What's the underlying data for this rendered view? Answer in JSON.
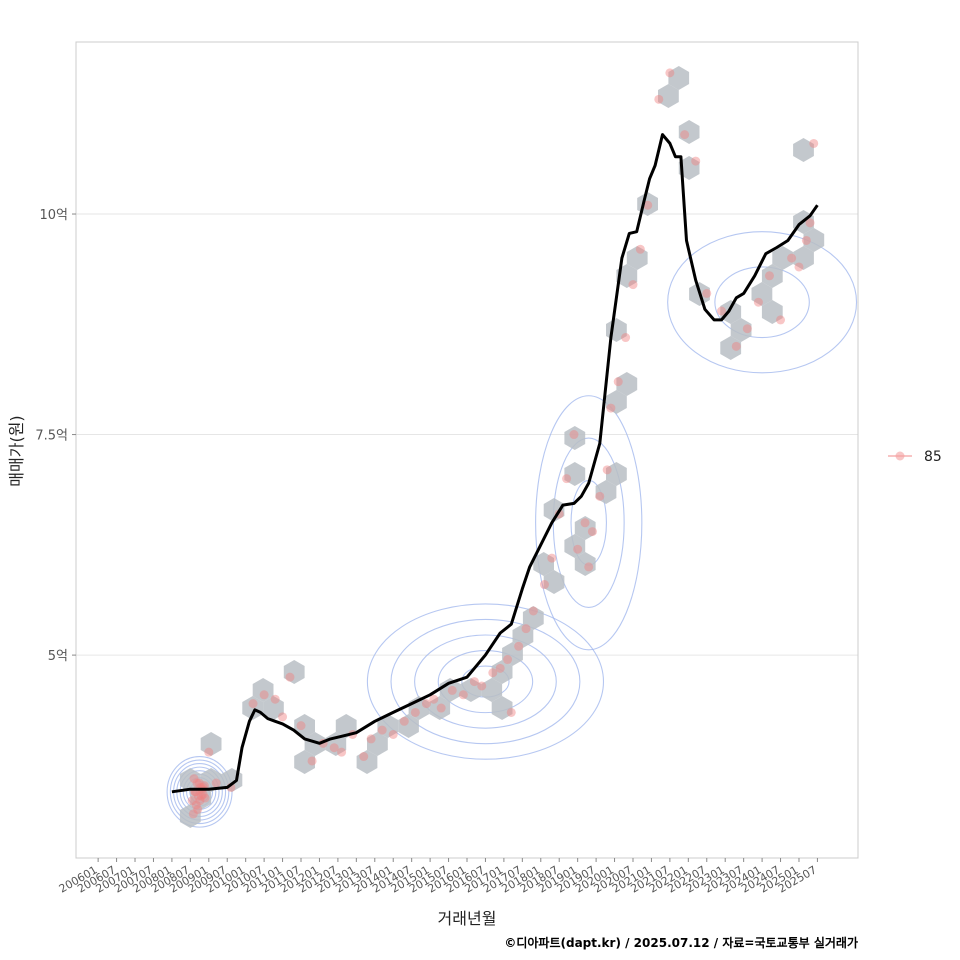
{
  "chart_data": {
    "type": "scatter",
    "xlabel": "거래년월",
    "ylabel": "매매가(원)",
    "caption": "©디아파트(dapt.kr) / 2025.07.12 / 자료=국토교통부 실거래가",
    "x_ticks": [
      "200601",
      "200607",
      "200701",
      "200707",
      "200801",
      "200807",
      "200901",
      "200907",
      "201001",
      "201007",
      "201101",
      "201107",
      "201201",
      "201207",
      "201301",
      "201307",
      "201401",
      "201407",
      "201501",
      "201507",
      "201601",
      "201607",
      "201701",
      "201707",
      "201801",
      "201807",
      "201901",
      "201907",
      "202001",
      "202007",
      "202101",
      "202107",
      "202201",
      "202207",
      "202301",
      "202307",
      "202401",
      "202407",
      "202501",
      "202507"
    ],
    "y_ticks": [
      {
        "value": 5.0,
        "label": "5억"
      },
      {
        "value": 7.5,
        "label": "7.5억"
      },
      {
        "value": 10.0,
        "label": "10억"
      }
    ],
    "xlim": [
      2005.4,
      2026.6
    ],
    "ylim": [
      2.7,
      11.95
    ],
    "grid": "horizontal",
    "legend": {
      "position": "right",
      "entries": [
        {
          "label": "85",
          "color": "#f4a0a0"
        }
      ]
    },
    "colors": {
      "points": "#f08080",
      "hex": "#b8bec4",
      "trend": "#000000",
      "contour": "#9db4ec",
      "panel_border": "#cccccc",
      "grid": "#e6e6e6"
    },
    "trend_series": {
      "x": [
        2008.0,
        2008.5,
        2009.0,
        2009.5,
        2009.75,
        2009.9,
        2010.1,
        2010.25,
        2010.4,
        2010.6,
        2010.8,
        2011.0,
        2011.3,
        2011.6,
        2012.0,
        2012.3,
        2012.6,
        2013.0,
        2013.5,
        2014.0,
        2014.5,
        2015.0,
        2015.5,
        2016.0,
        2016.5,
        2016.9,
        2017.2,
        2017.5,
        2017.7,
        2018.0,
        2018.3,
        2018.6,
        2018.9,
        2019.1,
        2019.3,
        2019.6,
        2019.9,
        2020.2,
        2020.4,
        2020.6,
        2020.8,
        2020.95,
        2021.1,
        2021.3,
        2021.5,
        2021.65,
        2021.8,
        2021.95,
        2022.2,
        2022.45,
        2022.7,
        2022.9,
        2023.1,
        2023.3,
        2023.5,
        2023.8,
        2024.1,
        2024.4,
        2024.7,
        2025.0,
        2025.3,
        2025.5
      ],
      "y": [
        3.45,
        3.48,
        3.48,
        3.5,
        3.58,
        3.95,
        4.25,
        4.38,
        4.35,
        4.28,
        4.25,
        4.22,
        4.15,
        4.05,
        4.0,
        4.05,
        4.08,
        4.12,
        4.25,
        4.35,
        4.45,
        4.55,
        4.68,
        4.75,
        5.0,
        5.25,
        5.35,
        5.75,
        6.0,
        6.25,
        6.5,
        6.7,
        6.72,
        6.8,
        6.95,
        7.4,
        8.6,
        9.5,
        9.78,
        9.8,
        10.15,
        10.4,
        10.55,
        10.9,
        10.8,
        10.65,
        10.65,
        9.7,
        9.25,
        8.92,
        8.8,
        8.8,
        8.9,
        9.05,
        9.1,
        9.3,
        9.55,
        9.62,
        9.7,
        9.88,
        9.98,
        10.1
      ]
    },
    "points": {
      "x": [
        2008.55,
        2008.62,
        2008.68,
        2008.72,
        2008.78,
        2008.85,
        2008.9,
        2008.58,
        2008.66,
        2008.74,
        2008.82,
        2008.6,
        2008.7,
        2008.8,
        2008.88,
        2008.64,
        2008.76,
        2008.84,
        2009.0,
        2009.2,
        2009.6,
        2010.2,
        2010.5,
        2010.8,
        2011.0,
        2011.2,
        2011.5,
        2011.8,
        2012.1,
        2012.4,
        2012.6,
        2012.9,
        2013.2,
        2013.4,
        2013.7,
        2014.0,
        2014.3,
        2014.6,
        2014.9,
        2015.1,
        2015.3,
        2015.6,
        2015.9,
        2016.2,
        2016.4,
        2016.7,
        2016.9,
        2017.1,
        2017.2,
        2017.4,
        2017.6,
        2017.8,
        2018.1,
        2018.3,
        2018.5,
        2018.7,
        2018.9,
        2019.0,
        2019.2,
        2019.3,
        2019.4,
        2019.6,
        2019.8,
        2019.9,
        2020.1,
        2020.3,
        2020.5,
        2020.7,
        2020.9,
        2021.2,
        2021.5,
        2021.9,
        2022.2,
        2022.5,
        2022.9,
        2023.3,
        2023.6,
        2023.9,
        2024.2,
        2024.5,
        2024.8,
        2025.0,
        2025.2,
        2025.3,
        2025.4
      ],
      "y": [
        3.35,
        3.45,
        3.55,
        3.4,
        3.5,
        3.42,
        3.38,
        3.2,
        3.3,
        3.55,
        3.48,
        3.6,
        3.25,
        3.4,
        3.52,
        3.45,
        3.35,
        3.5,
        3.9,
        3.55,
        3.5,
        4.45,
        4.55,
        4.5,
        4.3,
        4.75,
        4.2,
        3.8,
        4.0,
        3.95,
        3.9,
        4.1,
        3.85,
        4.05,
        4.15,
        4.1,
        4.25,
        4.35,
        4.45,
        4.5,
        4.4,
        4.6,
        4.55,
        4.7,
        4.65,
        4.8,
        4.85,
        4.95,
        4.35,
        5.1,
        5.3,
        5.5,
        5.8,
        6.1,
        6.6,
        7.0,
        7.5,
        6.2,
        6.5,
        6.0,
        6.4,
        6.8,
        7.1,
        7.8,
        8.1,
        8.6,
        9.2,
        9.6,
        10.1,
        11.3,
        11.6,
        10.9,
        10.6,
        9.1,
        8.9,
        8.5,
        8.7,
        9.0,
        9.3,
        8.8,
        9.5,
        9.4,
        9.7,
        9.9,
        10.8
      ]
    }
  }
}
